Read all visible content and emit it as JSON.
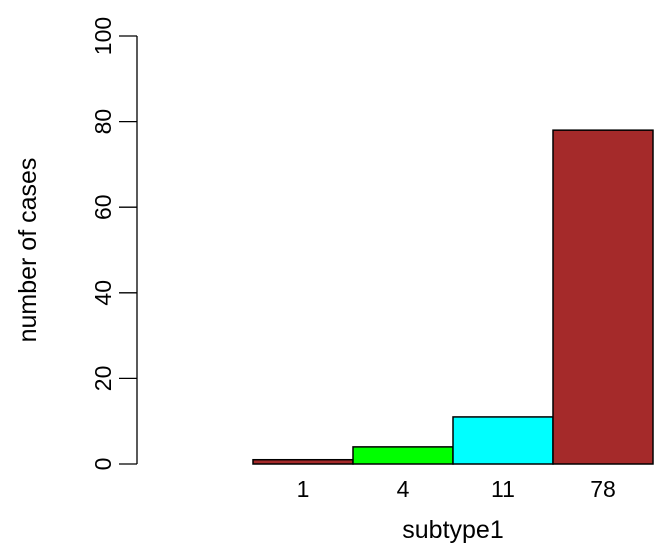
{
  "chart_data": {
    "type": "bar",
    "title": "",
    "xlabel": "subtype1",
    "ylabel": "number of cases",
    "categories": [
      "1",
      "4",
      "11",
      "78"
    ],
    "values": [
      1,
      4,
      11,
      78
    ],
    "colors": [
      "#a52a2a",
      "#00ff00",
      "#00ffff",
      "#a52a2a"
    ],
    "ylim": [
      0,
      100
    ],
    "yticks": [
      0,
      20,
      40,
      60,
      80,
      100
    ],
    "grid": false,
    "legend": "none"
  }
}
